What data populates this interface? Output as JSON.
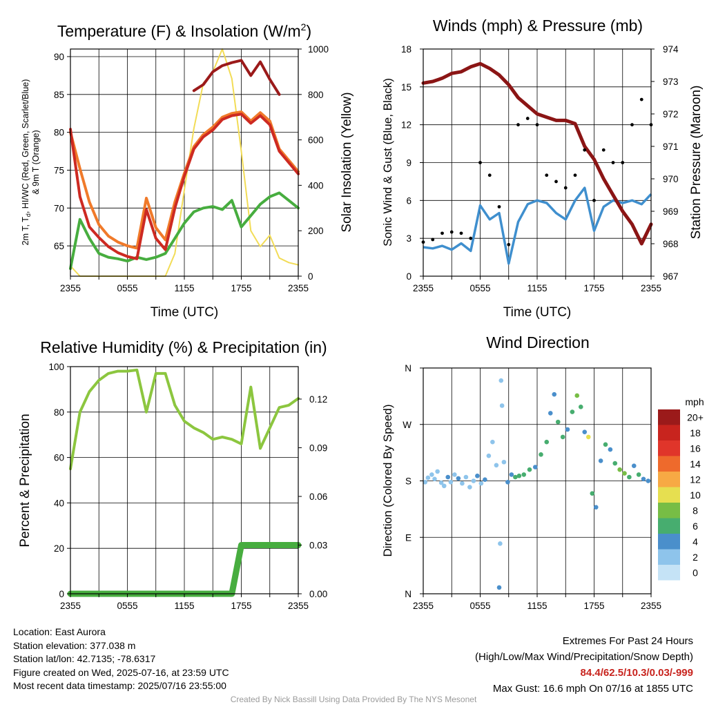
{
  "charts": {
    "temp": {
      "title": "Temperature (F) & Insolation (W/m",
      "title_sup": "2",
      "title_close": ")",
      "xlabel": "Time (UTC)",
      "ylabel_line1": "2m T, T",
      "ylabel_sub": "d",
      "ylabel_rest": ", HI/WC (Red, Green, Scarlet/Blue)",
      "ylabel_line2": "& 9m T (Orange)",
      "y2label": "Solar Insolation (Yellow)",
      "xticks": [
        "2355",
        "0555",
        "1155",
        "1755",
        "2355"
      ],
      "yticks": [
        "65",
        "70",
        "75",
        "80",
        "85",
        "90"
      ],
      "y2ticks": [
        "0",
        "200",
        "400",
        "600",
        "800",
        "1000"
      ]
    },
    "wind": {
      "title": "Winds (mph) & Pressure (mb)",
      "xlabel": "Time (UTC)",
      "ylabel": "Sonic Wind & Gust (Blue, Black)",
      "y2label": "Station Pressure (Maroon)",
      "xticks": [
        "2355",
        "0555",
        "1155",
        "1755",
        "2355"
      ],
      "yticks": [
        "0",
        "3",
        "6",
        "9",
        "12",
        "15",
        "18"
      ],
      "y2ticks": [
        "967",
        "968",
        "969",
        "970",
        "971",
        "972",
        "973",
        "974"
      ]
    },
    "rh": {
      "title": "Relative Humidity (%) & Precipitation (in)",
      "ylabel": "Percent & Precipitation",
      "xticks": [
        "2355",
        "0555",
        "1155",
        "1755",
        "2355"
      ],
      "yticks": [
        "0",
        "20",
        "40",
        "60",
        "80",
        "100"
      ],
      "y2ticks": [
        "0.00",
        "0.03",
        "0.06",
        "0.09",
        "0.12"
      ]
    },
    "dir": {
      "title": "Wind Direction",
      "ylabel": "Direction (Colored By Speed)",
      "xticks": [
        "2355",
        "0555",
        "1155",
        "1755",
        "2355"
      ],
      "yticks": [
        "N",
        "E",
        "S",
        "W",
        "N"
      ],
      "colorbar_title": "mph",
      "colorbar_labels": [
        "0",
        "2",
        "4",
        "6",
        "8",
        "10",
        "12",
        "14",
        "16",
        "18",
        "20+"
      ]
    }
  },
  "chart_data": [
    {
      "type": "line",
      "title": "Temperature (F) & Insolation (W/m2)",
      "xlabel": "Time (UTC)",
      "x_unit": "hours since 2355 UTC",
      "xlim": [
        0,
        24
      ],
      "ylim": [
        61,
        91
      ],
      "y2lim": [
        0,
        1000
      ],
      "x": [
        0,
        1,
        2,
        3,
        4,
        5,
        6,
        7,
        8,
        9,
        10,
        11,
        12,
        13,
        14,
        15,
        16,
        17,
        18,
        19,
        20,
        21,
        22,
        23,
        24
      ],
      "series": [
        {
          "name": "2m T",
          "color": "#cd2a22",
          "axis": "left",
          "values": [
            80.4,
            71.5,
            67.5,
            66.1,
            64.9,
            64.1,
            63.6,
            63.3,
            69.8,
            66.0,
            64.5,
            70.0,
            74.2,
            77.8,
            79.4,
            80.3,
            81.7,
            82.2,
            82.4,
            81.2,
            82.2,
            81.0,
            77.5,
            76.0,
            74.5
          ]
        },
        {
          "name": "9m T",
          "color": "#f07a2a",
          "axis": "left",
          "values": [
            80.0,
            75.2,
            70.8,
            67.8,
            66.3,
            65.5,
            65.0,
            64.7,
            71.3,
            67.4,
            65.8,
            70.8,
            74.6,
            78.1,
            79.7,
            80.7,
            82.0,
            82.5,
            82.7,
            81.5,
            82.6,
            81.5,
            77.8,
            76.3,
            74.8
          ]
        },
        {
          "name": "Td",
          "color": "#47ad3f",
          "axis": "left",
          "values": [
            62.0,
            68.5,
            66.0,
            64.0,
            63.5,
            63.3,
            63.0,
            63.5,
            63.2,
            63.5,
            64.0,
            66.0,
            68.0,
            69.5,
            70.0,
            70.2,
            69.8,
            71.0,
            67.5,
            69.0,
            70.5,
            71.5,
            72.0,
            71.0,
            70.0
          ]
        },
        {
          "name": "HI",
          "color": "#9b1a1a",
          "axis": "left",
          "values": [
            null,
            null,
            null,
            null,
            null,
            null,
            null,
            null,
            null,
            null,
            null,
            null,
            null,
            85.5,
            86.3,
            88.0,
            88.8,
            89.2,
            89.5,
            87.5,
            89.3,
            87.0,
            85.0,
            null,
            null
          ]
        },
        {
          "name": "Solar Insolation",
          "color": "#f2dc56",
          "axis": "right",
          "values": [
            45,
            0,
            0,
            0,
            0,
            0,
            0,
            0,
            0,
            0,
            0,
            100,
            380,
            650,
            850,
            900,
            1000,
            870,
            550,
            200,
            130,
            180,
            80,
            60,
            50
          ]
        }
      ]
    },
    {
      "type": "line",
      "title": "Winds (mph) & Pressure (mb)",
      "xlabel": "Time (UTC)",
      "x_unit": "hours since 2355 UTC",
      "xlim": [
        0,
        24
      ],
      "ylim": [
        0,
        18
      ],
      "y2lim": [
        967,
        974
      ],
      "x": [
        0,
        1,
        2,
        3,
        4,
        5,
        6,
        7,
        8,
        9,
        10,
        11,
        12,
        13,
        14,
        15,
        16,
        17,
        18,
        19,
        20,
        21,
        22,
        23,
        24
      ],
      "series": [
        {
          "name": "Sonic Wind",
          "color": "#3f8fce",
          "axis": "left",
          "values": [
            2.3,
            2.2,
            2.4,
            2.1,
            2.6,
            2.0,
            5.6,
            4.5,
            5.0,
            1.0,
            4.3,
            5.7,
            6.0,
            5.8,
            5.0,
            4.5,
            6.0,
            7.0,
            3.6,
            5.5,
            6.0,
            5.8,
            6.0,
            5.7,
            6.5
          ]
        },
        {
          "name": "Gust",
          "color": "#000000",
          "axis": "left",
          "values": [
            2.7,
            2.9,
            3.4,
            3.5,
            3.4,
            3.0,
            9.0,
            8.0,
            5.5,
            2.5,
            12.0,
            12.5,
            12.0,
            8.0,
            7.5,
            7.0,
            8.0,
            10.0,
            6.0,
            10.0,
            9.0,
            9.0,
            12.0,
            14.0,
            12.0
          ]
        },
        {
          "name": "Station Pressure",
          "color": "#8b1515",
          "axis": "right",
          "values": [
            972.95,
            973.0,
            973.1,
            973.25,
            973.3,
            973.45,
            973.55,
            973.4,
            973.2,
            972.9,
            972.5,
            972.25,
            972.0,
            971.9,
            971.8,
            971.8,
            971.7,
            971.0,
            970.6,
            970.0,
            969.5,
            969.0,
            968.6,
            968.0,
            968.6
          ]
        }
      ]
    },
    {
      "type": "line",
      "title": "Relative Humidity (%) & Precipitation (in)",
      "x_unit": "hours since 2355 UTC",
      "xlim": [
        0,
        24
      ],
      "ylim": [
        0,
        100
      ],
      "y2lim": [
        0,
        0.14
      ],
      "x": [
        0,
        1,
        2,
        3,
        4,
        5,
        6,
        7,
        8,
        9,
        10,
        11,
        12,
        13,
        14,
        15,
        16,
        17,
        18,
        19,
        20,
        21,
        22,
        23,
        24
      ],
      "series": [
        {
          "name": "Relative Humidity",
          "color": "#8cc63f",
          "axis": "left",
          "values": [
            55,
            80,
            89,
            94,
            97,
            98,
            98,
            98.5,
            80,
            97,
            97,
            83,
            76,
            73,
            71,
            68,
            69,
            68,
            66,
            91,
            64,
            73,
            82,
            83,
            86
          ]
        },
        {
          "name": "Precipitation",
          "color": "#47ad3f",
          "axis": "right",
          "values": [
            0,
            0,
            0,
            0,
            0,
            0,
            0,
            0,
            0,
            0,
            0,
            0,
            0,
            0,
            0,
            0,
            0,
            0,
            0.03,
            0.03,
            0.03,
            0.03,
            0.03,
            0.03,
            0.03
          ]
        }
      ]
    },
    {
      "type": "scatter",
      "title": "Wind Direction",
      "x_unit": "hours since 2355 UTC",
      "xlim": [
        0,
        24
      ],
      "ylim": [
        0,
        360
      ],
      "y_unit": "degrees (N=0, E=90, S=180, W=270, N=360)",
      "points": [
        [
          0.2,
          178,
          2
        ],
        [
          0.5,
          185,
          2
        ],
        [
          0.9,
          190,
          2
        ],
        [
          1.2,
          183,
          1
        ],
        [
          1.5,
          195,
          2
        ],
        [
          1.9,
          177,
          2
        ],
        [
          2.2,
          172,
          2
        ],
        [
          2.6,
          186,
          3
        ],
        [
          2.9,
          178,
          2
        ],
        [
          3.3,
          190,
          2
        ],
        [
          3.7,
          184,
          3
        ],
        [
          4.1,
          176,
          2
        ],
        [
          4.5,
          186,
          2
        ],
        [
          4.9,
          170,
          1
        ],
        [
          5.3,
          180,
          2
        ],
        [
          5.7,
          188,
          3
        ],
        [
          6.1,
          176,
          2
        ],
        [
          6.5,
          182,
          3
        ],
        [
          6.9,
          220,
          1
        ],
        [
          7.3,
          242,
          1
        ],
        [
          7.7,
          205,
          1
        ],
        [
          8.0,
          10,
          3
        ],
        [
          8.1,
          80,
          2
        ],
        [
          8.2,
          340,
          2
        ],
        [
          8.3,
          300,
          1
        ],
        [
          8.5,
          210,
          2
        ],
        [
          8.9,
          178,
          3
        ],
        [
          9.3,
          190,
          4
        ],
        [
          9.7,
          186,
          5
        ],
        [
          10.1,
          188,
          6
        ],
        [
          10.6,
          190,
          5
        ],
        [
          11.2,
          198,
          6
        ],
        [
          11.8,
          202,
          4
        ],
        [
          12.4,
          222,
          5
        ],
        [
          13.0,
          242,
          6
        ],
        [
          13.4,
          288,
          4
        ],
        [
          13.8,
          318,
          3
        ],
        [
          14.2,
          274,
          6
        ],
        [
          14.7,
          250,
          5
        ],
        [
          15.2,
          262,
          4
        ],
        [
          15.7,
          290,
          5
        ],
        [
          16.2,
          316,
          7
        ],
        [
          16.6,
          298,
          6
        ],
        [
          17.0,
          258,
          4
        ],
        [
          17.4,
          250,
          10
        ],
        [
          17.8,
          160,
          6
        ],
        [
          18.2,
          138,
          3
        ],
        [
          18.7,
          212,
          4
        ],
        [
          19.2,
          238,
          5
        ],
        [
          19.7,
          230,
          4
        ],
        [
          20.2,
          208,
          6
        ],
        [
          20.7,
          198,
          7
        ],
        [
          21.2,
          192,
          8
        ],
        [
          21.7,
          186,
          6
        ],
        [
          22.2,
          204,
          4
        ],
        [
          22.7,
          190,
          5
        ],
        [
          23.2,
          183,
          4
        ],
        [
          23.7,
          180,
          3
        ]
      ],
      "point_fields": [
        "hours since 2355 UTC",
        "direction (deg)",
        "speed (mph)"
      ]
    }
  ],
  "info": {
    "location": "Location: East Aurora",
    "elevation": "Station elevation: 377.038 m",
    "latlon": "Station lat/lon: 42.7135; -78.6317",
    "created": "Figure created on Wed, 2025-07-16, at 23:59 UTC",
    "recent": "Most recent data timestamp: 2025/07/16 23:55:00"
  },
  "extremes": {
    "title": "Extremes For Past 24 Hours",
    "subtitle": "(High/Low/Max Wind/Precipitation/Snow Depth)",
    "values": "84.4/62.5/10.3/0.03/-999",
    "gust": "Max Gust: 16.6 mph On 07/16 at 1855 UTC"
  },
  "credit": "Created By Nick Bassill Using Data Provided By The NYS Mesonet",
  "colors": {
    "temp": "#cd2a22",
    "temp9m": "#f07a2a",
    "dewpoint": "#47ad3f",
    "heat_index": "#9b1a1a",
    "insolation": "#f2dc56",
    "wind": "#3f8fce",
    "gust": "#000000",
    "pressure": "#8b1515",
    "rh": "#8cc63f",
    "precip": "#47ad3f",
    "speed_scale": [
      "#c5e3f6",
      "#8ec4eb",
      "#4a8fcb",
      "#47ad6f",
      "#77bd45",
      "#e6df50",
      "#f7a944",
      "#ee6a2c",
      "#e0352a",
      "#c8241e",
      "#9b1a1a"
    ]
  }
}
